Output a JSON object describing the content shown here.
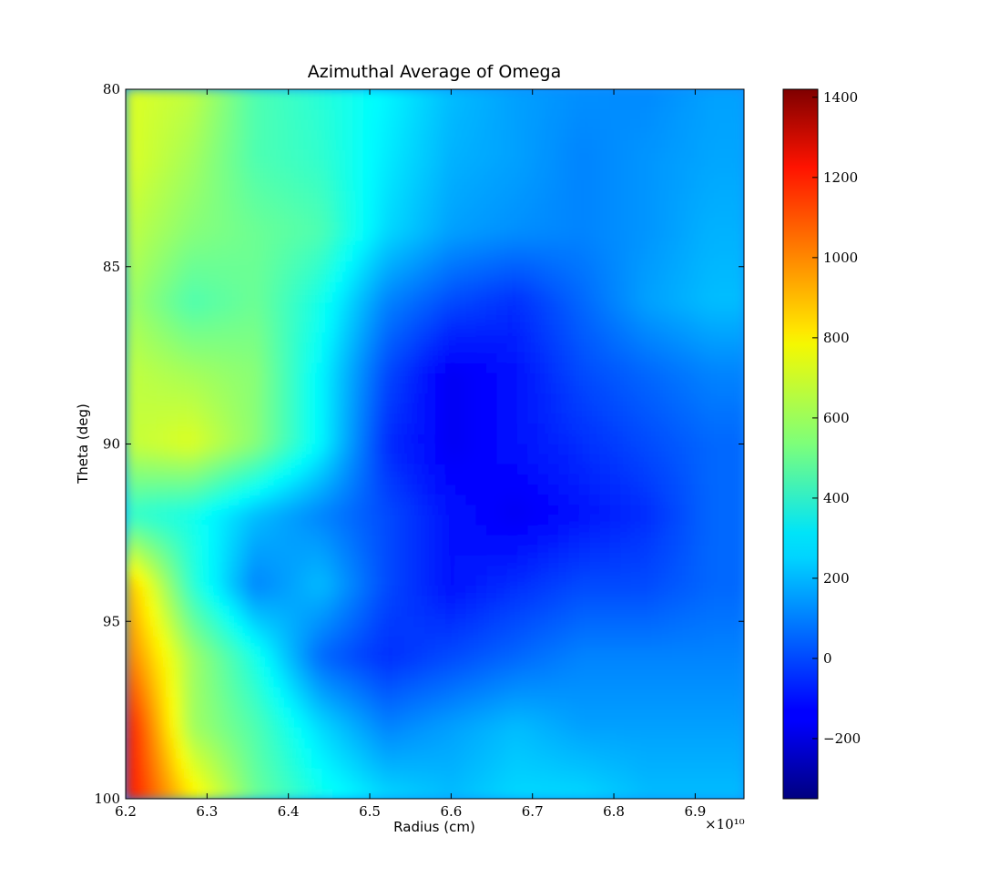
{
  "chart_data": {
    "type": "heatmap",
    "title": "Azimuthal Average of Omega",
    "xlabel": "Radius (cm)",
    "ylabel": "Theta (deg)",
    "x_range": [
      6.2,
      6.96
    ],
    "x_scale_note": "×10¹⁰",
    "x_ticks": [
      "6.2",
      "6.3",
      "6.4",
      "6.5",
      "6.6",
      "6.7",
      "6.8",
      "6.9"
    ],
    "y_range": [
      80,
      100
    ],
    "y_ticks": [
      "80",
      "85",
      "90",
      "95",
      "100"
    ],
    "y_inverted": true,
    "colormap": "jet",
    "colorbar": {
      "range": [
        -350,
        1420
      ],
      "ticks": [
        "1400",
        "1200",
        "1000",
        "800",
        "600",
        "400",
        "200",
        "0",
        "−200"
      ]
    },
    "description_values": {
      "rows_theta": [
        80,
        82,
        84,
        86,
        88,
        90,
        92,
        94,
        96,
        98,
        100
      ],
      "cols_radius": [
        6.2,
        6.28,
        6.36,
        6.44,
        6.52,
        6.6,
        6.68,
        6.76,
        6.84,
        6.92
      ],
      "z": [
        [
          700,
          650,
          450,
          380,
          300,
          200,
          150,
          120,
          110,
          150
        ],
        [
          700,
          600,
          450,
          400,
          280,
          180,
          150,
          100,
          130,
          160
        ],
        [
          650,
          550,
          500,
          450,
          250,
          150,
          120,
          100,
          130,
          180
        ],
        [
          600,
          450,
          500,
          350,
          100,
          0,
          -50,
          50,
          150,
          200
        ],
        [
          650,
          600,
          550,
          300,
          0,
          -150,
          -100,
          0,
          50,
          100
        ],
        [
          650,
          700,
          550,
          300,
          -50,
          -150,
          -100,
          -50,
          0,
          50
        ],
        [
          400,
          350,
          200,
          100,
          0,
          -100,
          -150,
          -100,
          -50,
          50
        ],
        [
          900,
          400,
          100,
          200,
          0,
          -100,
          -50,
          0,
          0,
          50
        ],
        [
          1000,
          600,
          350,
          50,
          -50,
          0,
          50,
          100,
          100,
          100
        ],
        [
          1200,
          600,
          450,
          250,
          100,
          150,
          200,
          150,
          150,
          150
        ],
        [
          1200,
          800,
          500,
          350,
          250,
          200,
          250,
          250,
          200,
          200
        ]
      ]
    }
  }
}
